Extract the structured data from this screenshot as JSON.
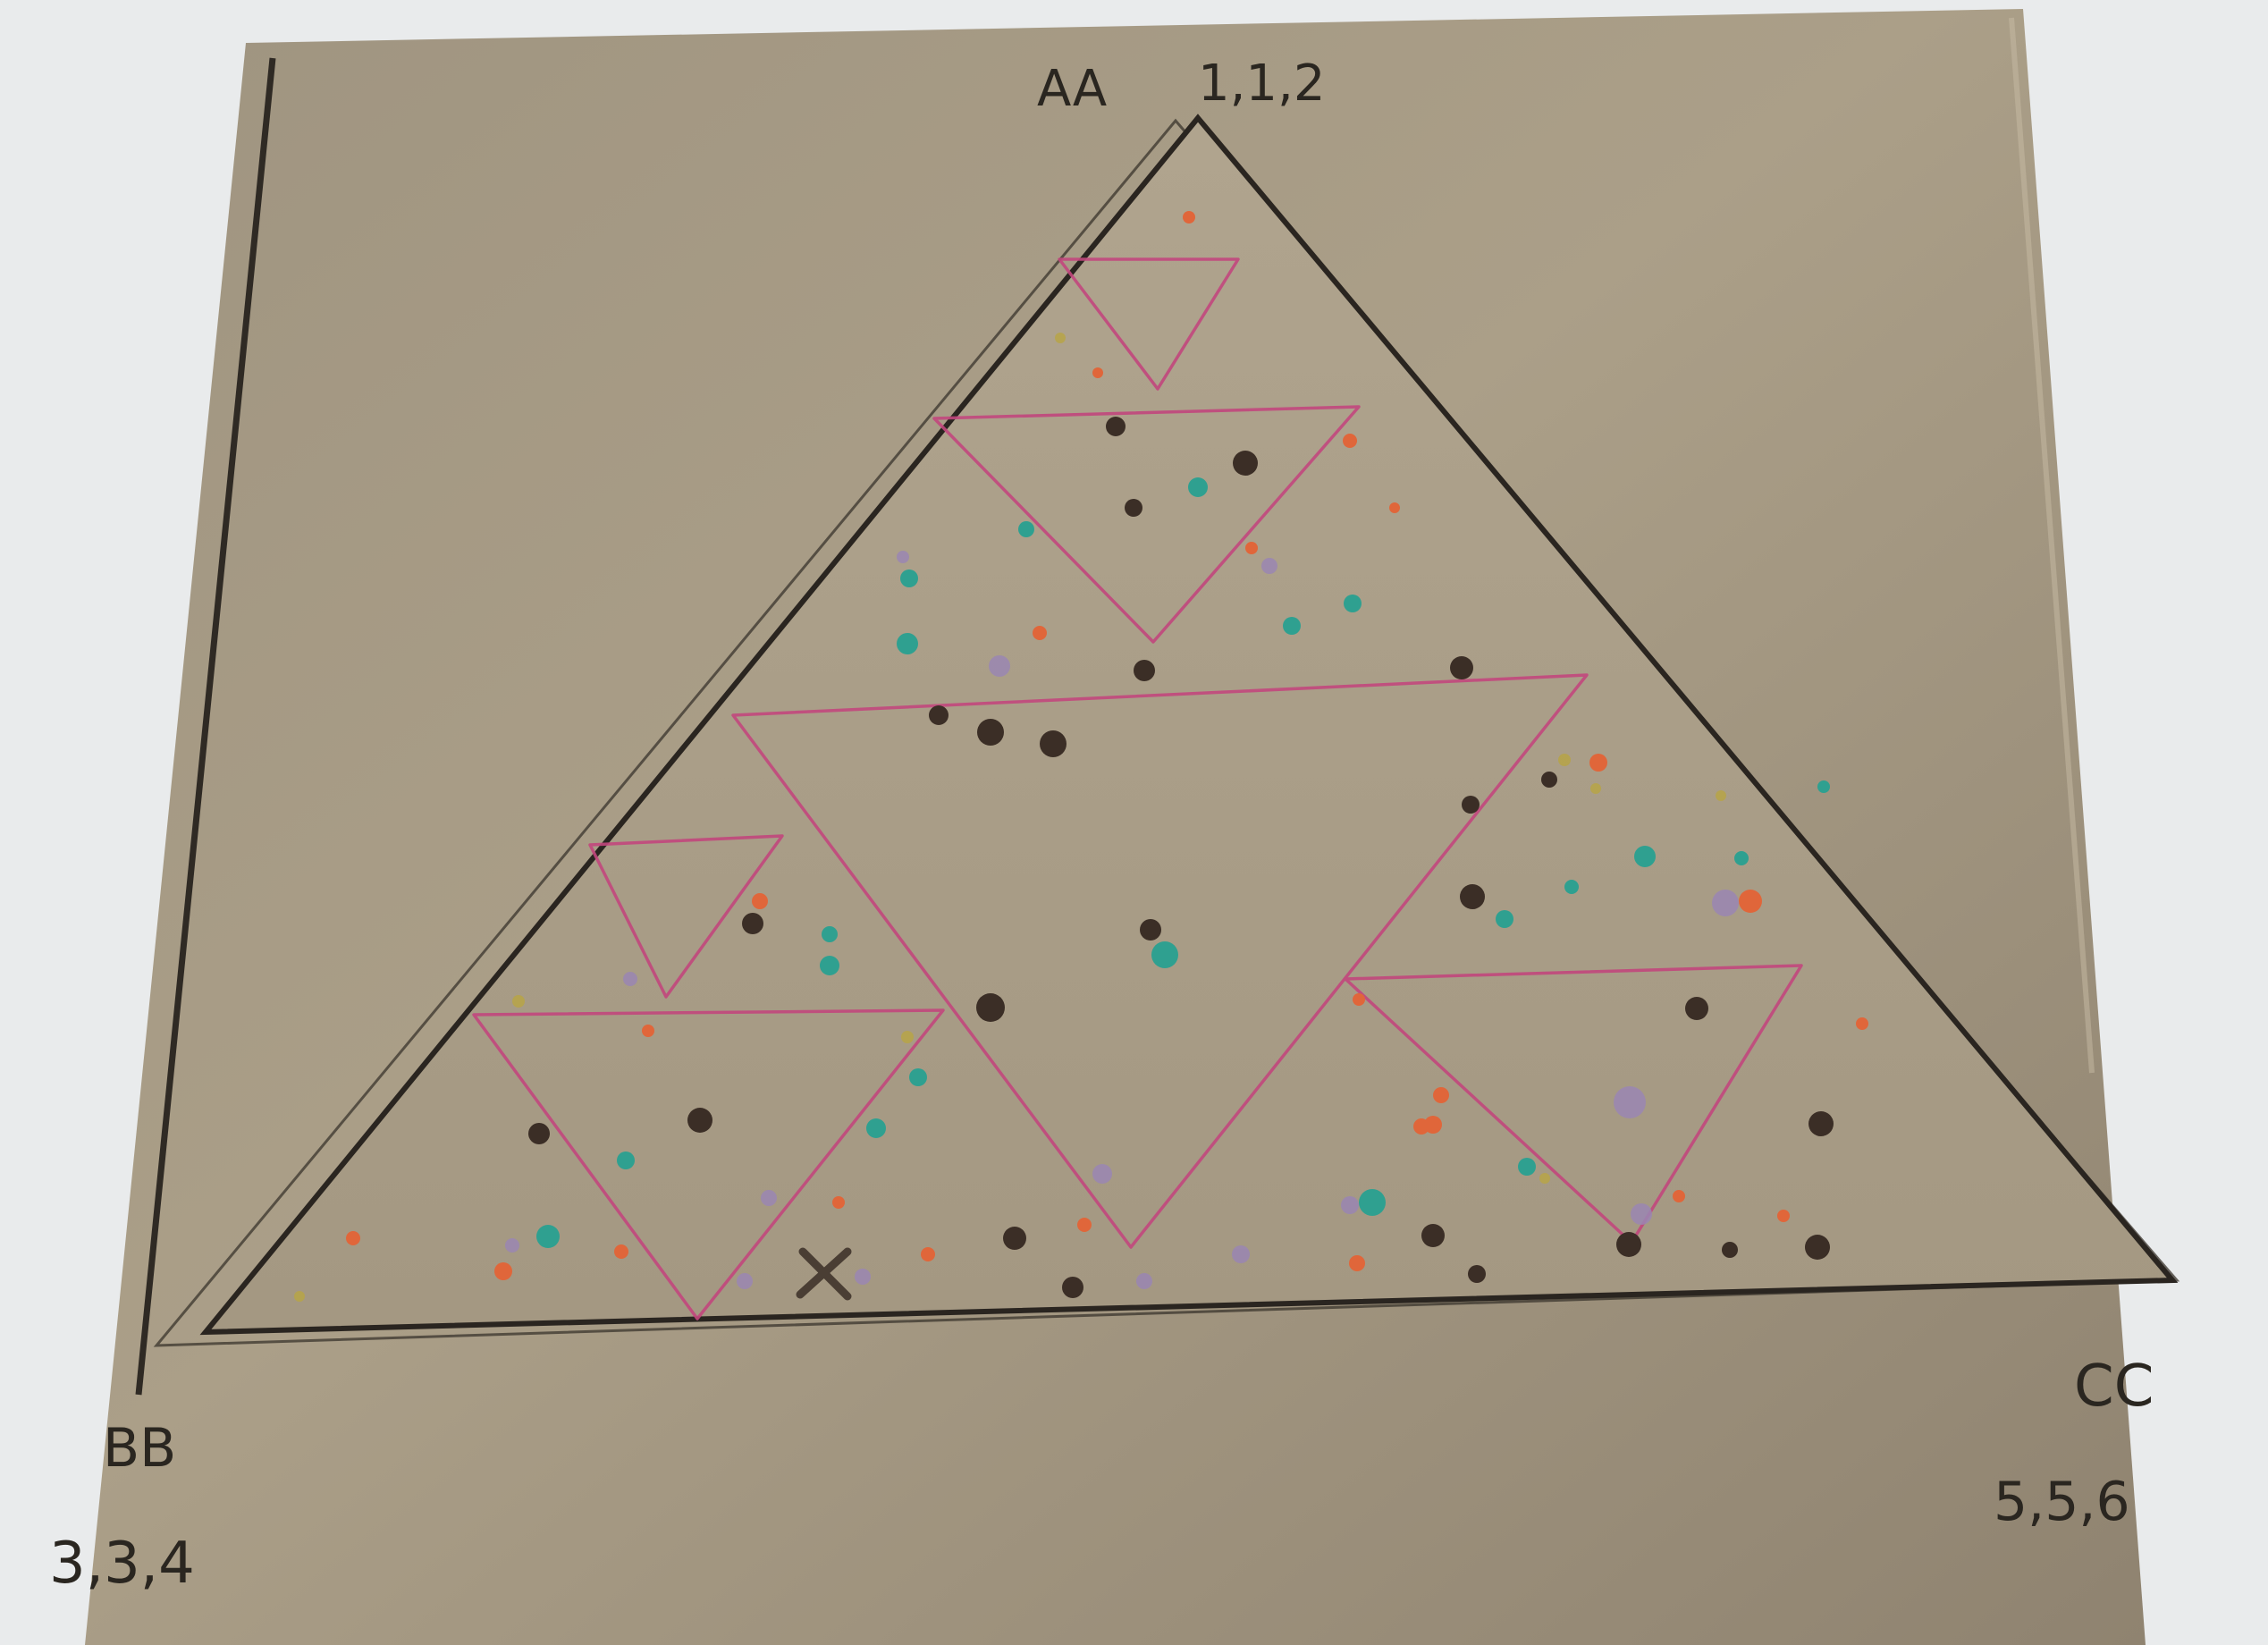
{
  "labels": {
    "top_letters": "AA",
    "top_numbers": "1,1,2",
    "left_letters": "BB",
    "left_numbers": "3,3,4",
    "right_letters": "CC",
    "right_numbers": "5,5,6",
    "mark": "X"
  },
  "colors": {
    "background": "#e9ebec",
    "sheet": "#a39680",
    "pink_lines": "#c2477d",
    "ink": "#2b2722",
    "dot_dark": "#3b2e26",
    "dot_orange": "#e0663a",
    "dot_teal": "#2fa090",
    "dot_purple": "#9a86b3",
    "dot_yellow": "#b7a447"
  }
}
